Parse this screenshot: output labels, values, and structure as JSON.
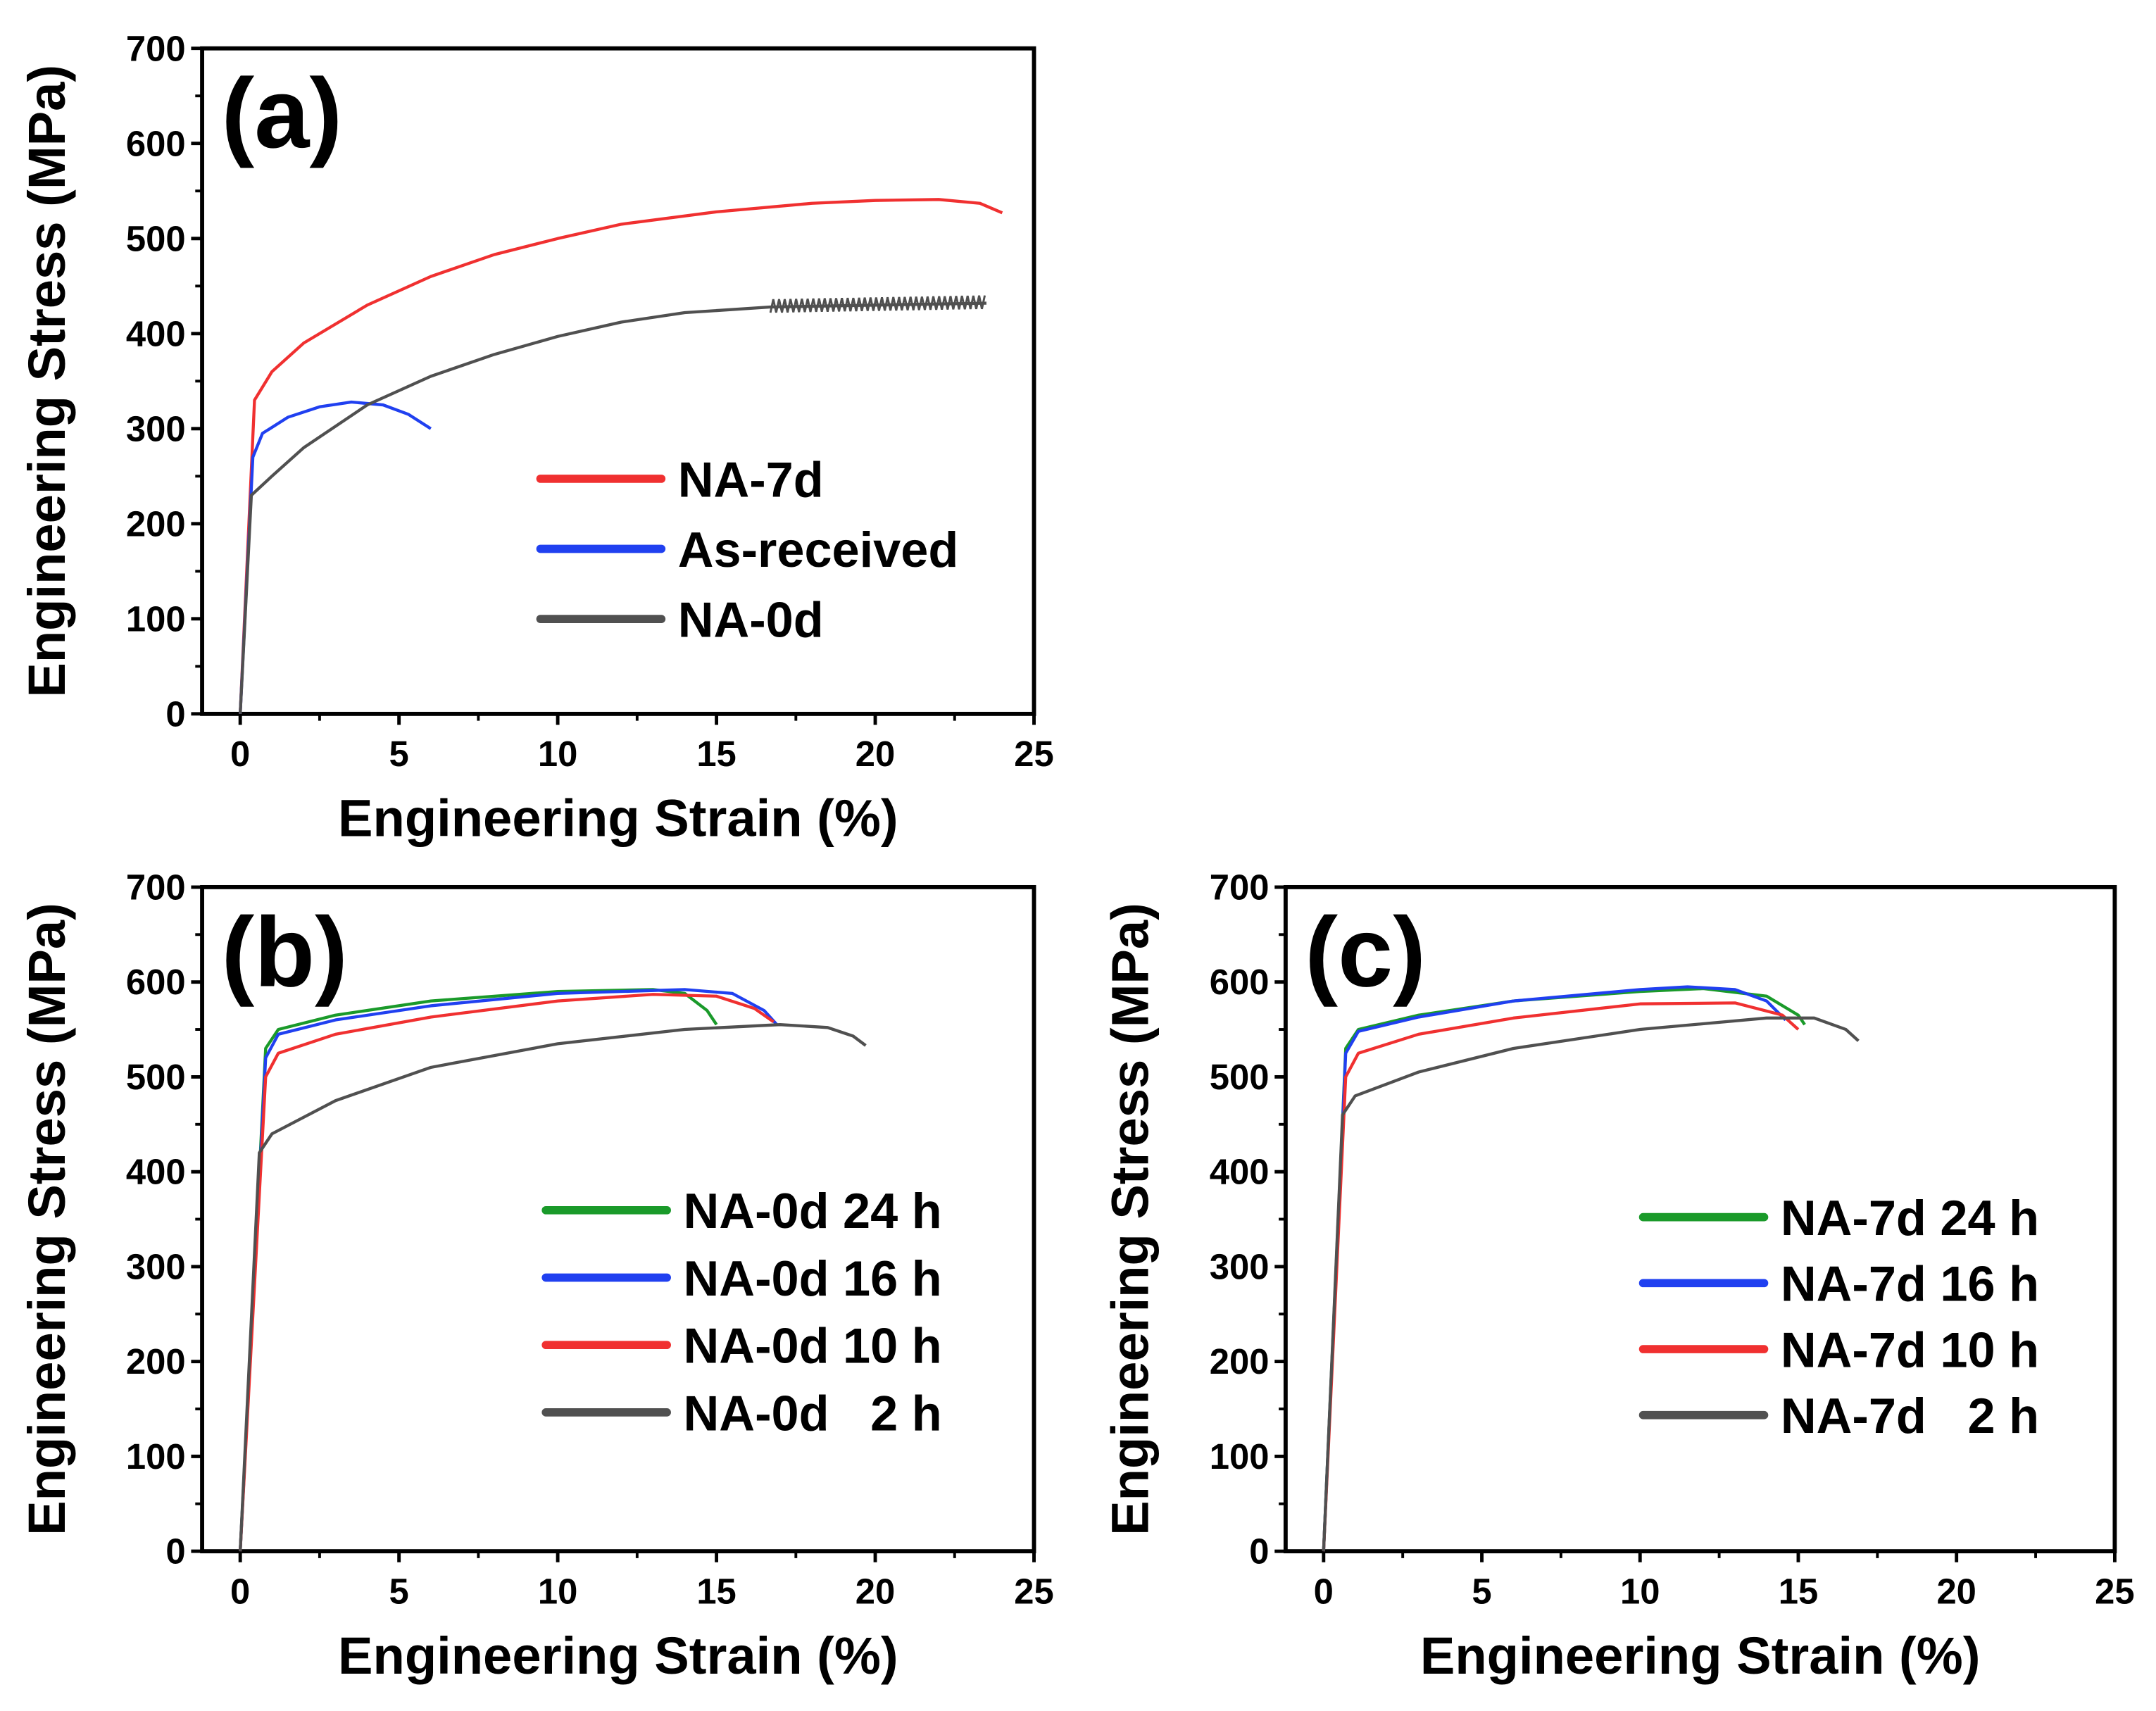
{
  "chart_data": [
    {
      "type": "line",
      "panel_label": "(a)",
      "xlabel": "Engineering Strain  (%)",
      "ylabel": "Engineering Stress (MPa)",
      "xlim": [
        -1.2,
        25
      ],
      "ylim": [
        0,
        700
      ],
      "xticks": [
        0,
        5,
        10,
        15,
        20,
        25
      ],
      "yticks": [
        0,
        100,
        200,
        300,
        400,
        500,
        600,
        700
      ],
      "legend_position": "center-right",
      "series": [
        {
          "name": "NA-7d",
          "color": "#f03030",
          "points": [
            [
              0,
              0
            ],
            [
              0.45,
              330
            ],
            [
              1,
              360
            ],
            [
              2,
              390
            ],
            [
              4,
              430
            ],
            [
              6,
              460
            ],
            [
              8,
              483
            ],
            [
              10,
              500
            ],
            [
              12,
              515
            ],
            [
              15,
              528
            ],
            [
              18,
              537
            ],
            [
              20,
              540
            ],
            [
              22,
              541
            ],
            [
              23.3,
              537
            ],
            [
              24,
              527
            ]
          ]
        },
        {
          "name": "As-received",
          "color": "#2040f0",
          "points": [
            [
              0,
              0
            ],
            [
              0.4,
              270
            ],
            [
              0.7,
              295
            ],
            [
              1.5,
              312
            ],
            [
              2.5,
              323
            ],
            [
              3.5,
              328
            ],
            [
              4.5,
              325
            ],
            [
              5.3,
              315
            ],
            [
              6,
              300
            ]
          ]
        },
        {
          "name": "NA-0d",
          "color": "#505050",
          "serrated_from": 16.7,
          "points": [
            [
              0,
              0
            ],
            [
              0.35,
              230
            ],
            [
              1,
              250
            ],
            [
              2,
              280
            ],
            [
              4,
              325
            ],
            [
              6,
              355
            ],
            [
              8,
              378
            ],
            [
              10,
              397
            ],
            [
              12,
              412
            ],
            [
              14,
              422
            ],
            [
              16.7,
              428
            ],
            [
              20,
              430
            ],
            [
              23.5,
              432
            ]
          ]
        }
      ]
    },
    {
      "type": "line",
      "panel_label": "(b)",
      "xlabel": "Engineering Strain  (%)",
      "ylabel": "Engineering Stress (MPa)",
      "xlim": [
        -1.2,
        25
      ],
      "ylim": [
        0,
        700
      ],
      "xticks": [
        0,
        5,
        10,
        15,
        20,
        25
      ],
      "yticks": [
        0,
        100,
        200,
        300,
        400,
        500,
        600,
        700
      ],
      "legend_position": "center-right",
      "series": [
        {
          "name": "NA-0d 24 h",
          "color": "#1a9a2a",
          "points": [
            [
              0,
              0
            ],
            [
              0.8,
              530
            ],
            [
              1.2,
              550
            ],
            [
              3,
              565
            ],
            [
              6,
              580
            ],
            [
              10,
              590
            ],
            [
              13,
              592
            ],
            [
              14,
              588
            ],
            [
              14.7,
              570
            ],
            [
              15,
              555
            ]
          ]
        },
        {
          "name": "NA-0d 16 h",
          "color": "#2040f0",
          "points": [
            [
              0,
              0
            ],
            [
              0.8,
              520
            ],
            [
              1.2,
              545
            ],
            [
              3,
              560
            ],
            [
              6,
              575
            ],
            [
              10,
              588
            ],
            [
              14,
              592
            ],
            [
              15.5,
              588
            ],
            [
              16.5,
              570
            ],
            [
              16.9,
              555
            ]
          ]
        },
        {
          "name": "NA-0d 10 h",
          "color": "#f03030",
          "points": [
            [
              0,
              0
            ],
            [
              0.8,
              500
            ],
            [
              1.2,
              525
            ],
            [
              3,
              545
            ],
            [
              6,
              563
            ],
            [
              10,
              580
            ],
            [
              13,
              587
            ],
            [
              15,
              585
            ],
            [
              16.2,
              572
            ],
            [
              16.8,
              558
            ]
          ]
        },
        {
          "name": "NA-0d   2 h",
          "color": "#505050",
          "points": [
            [
              0,
              0
            ],
            [
              0.6,
              420
            ],
            [
              1,
              440
            ],
            [
              3,
              475
            ],
            [
              6,
              510
            ],
            [
              10,
              535
            ],
            [
              14,
              550
            ],
            [
              17,
              555
            ],
            [
              18.5,
              552
            ],
            [
              19.3,
              543
            ],
            [
              19.7,
              533
            ]
          ]
        }
      ]
    },
    {
      "type": "line",
      "panel_label": "(c)",
      "xlabel": "Engineering Strain  (%)",
      "ylabel": "Engineering Stress (MPa)",
      "xlim": [
        -1.2,
        25
      ],
      "ylim": [
        0,
        700
      ],
      "xticks": [
        0,
        5,
        10,
        15,
        20,
        25
      ],
      "yticks": [
        0,
        100,
        200,
        300,
        400,
        500,
        600,
        700
      ],
      "legend_position": "center-right",
      "series": [
        {
          "name": "NA-7d 24 h",
          "color": "#1a9a2a",
          "points": [
            [
              0,
              0
            ],
            [
              0.7,
              530
            ],
            [
              1.1,
              550
            ],
            [
              3,
              565
            ],
            [
              6,
              580
            ],
            [
              10,
              590
            ],
            [
              12,
              593
            ],
            [
              14,
              585
            ],
            [
              15,
              565
            ],
            [
              15.2,
              555
            ]
          ]
        },
        {
          "name": "NA-7d 16 h",
          "color": "#2040f0",
          "points": [
            [
              0,
              0
            ],
            [
              0.7,
              525
            ],
            [
              1.1,
              548
            ],
            [
              3,
              563
            ],
            [
              6,
              580
            ],
            [
              10,
              592
            ],
            [
              11.5,
              595
            ],
            [
              13,
              592
            ],
            [
              14,
              580
            ],
            [
              14.6,
              560
            ]
          ]
        },
        {
          "name": "NA-7d 10 h",
          "color": "#f03030",
          "points": [
            [
              0,
              0
            ],
            [
              0.7,
              500
            ],
            [
              1.1,
              525
            ],
            [
              3,
              545
            ],
            [
              6,
              562
            ],
            [
              10,
              577
            ],
            [
              13,
              578
            ],
            [
              14.5,
              565
            ],
            [
              15,
              550
            ]
          ]
        },
        {
          "name": "NA-7d   2 h",
          "color": "#505050",
          "points": [
            [
              0,
              0
            ],
            [
              0.6,
              460
            ],
            [
              1,
              480
            ],
            [
              3,
              505
            ],
            [
              6,
              530
            ],
            [
              10,
              550
            ],
            [
              14,
              562
            ],
            [
              15.5,
              562
            ],
            [
              16.5,
              550
            ],
            [
              16.9,
              538
            ]
          ]
        }
      ]
    }
  ]
}
